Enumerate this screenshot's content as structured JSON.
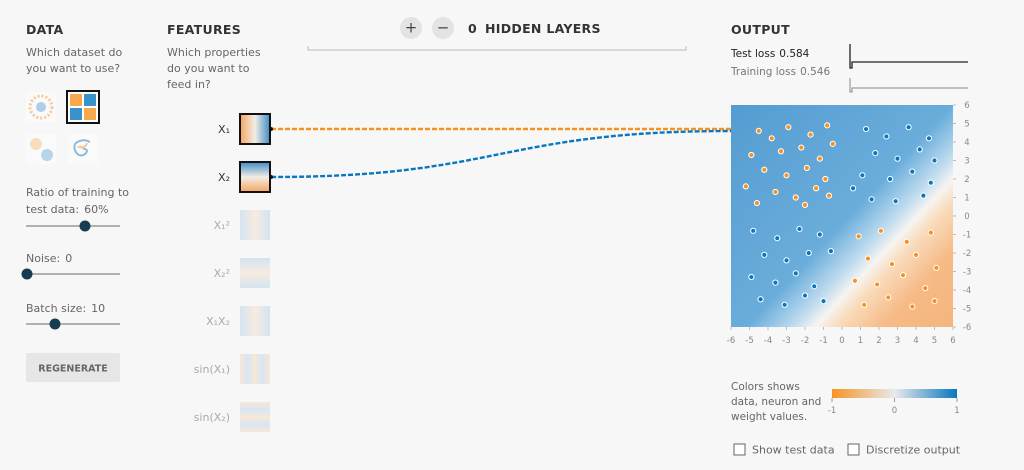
{
  "data_panel": {
    "title": "DATA",
    "prompt": [
      "Which dataset do",
      "you want to use?"
    ],
    "ratio_label": [
      "Ratio of training to",
      "test data:"
    ],
    "ratio_value": "60%",
    "noise_label": "Noise:",
    "noise_value": 0,
    "batch_label": "Batch size:",
    "batch_value": 10,
    "regenerate": "REGENERATE"
  },
  "features_panel": {
    "title": "FEATURES",
    "prompt": [
      "Which properties",
      "do you want to",
      "feed in?"
    ],
    "features": [
      "X₁",
      "X₂",
      "X₁²",
      "X₂²",
      "X₁X₂",
      "sin(X₁)",
      "sin(X₂)"
    ]
  },
  "network": {
    "add": "+",
    "remove": "−",
    "hidden_layers": 0,
    "hidden_layers_label": "HIDDEN LAYERS"
  },
  "output_panel": {
    "title": "OUTPUT",
    "test_loss_label": "Test loss",
    "test_loss": 0.584,
    "training_loss_label": "Training loss",
    "training_loss": 0.546,
    "plot": {
      "xlim": [
        -6,
        6
      ],
      "ylim": [
        -6,
        6
      ],
      "xticks": [
        -6,
        -5,
        -4,
        -3,
        -2,
        -1,
        0,
        1,
        2,
        3,
        4,
        5,
        6
      ],
      "yticks": [
        -6,
        -5,
        -4,
        -3,
        -2,
        -1,
        0,
        1,
        2,
        3,
        4,
        5,
        6
      ],
      "series": [
        {
          "color": "#f59322",
          "x": [
            -4.5,
            -3.8,
            -2.9,
            -1.7,
            -0.8,
            -4.9,
            -3.3,
            -2.2,
            -1.2,
            -0.5,
            -4.2,
            -3.0,
            -1.9,
            -0.9,
            -5.2,
            -3.6,
            -2.5,
            -1.4,
            -4.6,
            -2.0,
            -0.7,
            0.9,
            2.1,
            3.5,
            4.8,
            1.4,
            2.7,
            4.0,
            5.1,
            0.7,
            1.9,
            3.3,
            4.5,
            1.2,
            2.5,
            3.8,
            5.0
          ],
          "y": [
            4.6,
            4.2,
            4.8,
            4.4,
            4.9,
            3.3,
            3.5,
            3.7,
            3.1,
            3.9,
            2.5,
            2.2,
            2.6,
            2.0,
            1.6,
            1.3,
            1.0,
            1.5,
            0.7,
            0.6,
            1.1,
            -1.1,
            -0.8,
            -1.4,
            -0.9,
            -2.3,
            -2.6,
            -2.1,
            -2.8,
            -3.5,
            -3.7,
            -3.2,
            -3.9,
            -4.8,
            -4.4,
            -4.9,
            -4.6
          ]
        },
        {
          "color": "#0877bd",
          "x": [
            1.3,
            2.4,
            3.6,
            4.7,
            1.8,
            3.0,
            4.2,
            5.0,
            1.1,
            2.6,
            3.8,
            4.8,
            1.6,
            2.9,
            4.4,
            0.6,
            -4.8,
            -3.5,
            -2.3,
            -1.2,
            -4.2,
            -3.0,
            -1.8,
            -0.6,
            -4.9,
            -3.6,
            -2.5,
            -1.5,
            -4.4,
            -3.1,
            -2.0,
            -1.0
          ],
          "y": [
            4.7,
            4.3,
            4.8,
            4.2,
            3.4,
            3.1,
            3.6,
            3.0,
            2.2,
            2.0,
            2.4,
            1.8,
            0.9,
            0.8,
            1.1,
            1.5,
            -0.8,
            -1.2,
            -0.7,
            -1.0,
            -2.1,
            -2.4,
            -2.0,
            -1.9,
            -3.3,
            -3.6,
            -3.1,
            -3.8,
            -4.5,
            -4.8,
            -4.3,
            -4.6
          ]
        }
      ]
    },
    "legend_text": [
      "Colors shows",
      "data, neuron and",
      "weight values."
    ],
    "colorbar": {
      "lim": [
        -1,
        1
      ],
      "ticks": [
        -1,
        0,
        1
      ]
    },
    "show_test_data": "Show test data",
    "discretize_output": "Discretize output"
  }
}
